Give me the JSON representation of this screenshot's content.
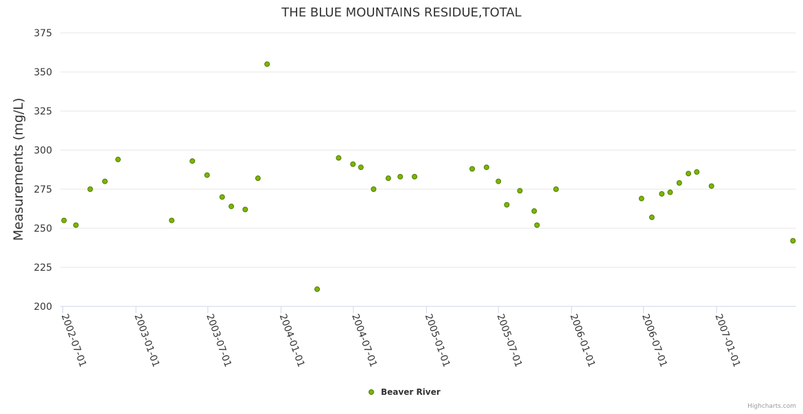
{
  "chart_data": {
    "type": "scatter",
    "title": "THE BLUE MOUNTAINS RESIDUE,TOTAL",
    "ylabel": "Measurements (mg/L)",
    "xlabel": "",
    "ylim": [
      200,
      375
    ],
    "yticks": [
      200,
      225,
      250,
      275,
      300,
      325,
      350,
      375
    ],
    "xlim": [
      "2002-06-25",
      "2007-07-20"
    ],
    "xticks": [
      "2002-07-01",
      "2003-01-01",
      "2003-07-01",
      "2004-01-01",
      "2004-07-01",
      "2005-01-01",
      "2005-07-01",
      "2006-01-01",
      "2006-07-01",
      "2007-01-01"
    ],
    "grid": true,
    "legend_position": "bottom-center",
    "series": [
      {
        "name": "Beaver River",
        "color": "#7cb500",
        "points": [
          {
            "x": "2002-07-04",
            "y": 255
          },
          {
            "x": "2002-08-03",
            "y": 252
          },
          {
            "x": "2002-09-08",
            "y": 275
          },
          {
            "x": "2002-10-15",
            "y": 280
          },
          {
            "x": "2002-11-17",
            "y": 294
          },
          {
            "x": "2003-04-01",
            "y": 255
          },
          {
            "x": "2003-05-23",
            "y": 293
          },
          {
            "x": "2003-06-29",
            "y": 284
          },
          {
            "x": "2003-08-06",
            "y": 270
          },
          {
            "x": "2003-08-29",
            "y": 264
          },
          {
            "x": "2003-10-03",
            "y": 262
          },
          {
            "x": "2003-11-04",
            "y": 282
          },
          {
            "x": "2003-11-27",
            "y": 355
          },
          {
            "x": "2004-04-01",
            "y": 211
          },
          {
            "x": "2004-05-25",
            "y": 295
          },
          {
            "x": "2004-06-30",
            "y": 291
          },
          {
            "x": "2004-07-20",
            "y": 289
          },
          {
            "x": "2004-08-21",
            "y": 275
          },
          {
            "x": "2004-09-27",
            "y": 282
          },
          {
            "x": "2004-10-27",
            "y": 283
          },
          {
            "x": "2004-12-02",
            "y": 283
          },
          {
            "x": "2005-04-26",
            "y": 288
          },
          {
            "x": "2005-06-01",
            "y": 289
          },
          {
            "x": "2005-07-01",
            "y": 280
          },
          {
            "x": "2005-07-22",
            "y": 265
          },
          {
            "x": "2005-08-24",
            "y": 274
          },
          {
            "x": "2005-09-29",
            "y": 261
          },
          {
            "x": "2005-10-06",
            "y": 252
          },
          {
            "x": "2005-11-23",
            "y": 275
          },
          {
            "x": "2006-06-26",
            "y": 269
          },
          {
            "x": "2006-07-22",
            "y": 257
          },
          {
            "x": "2006-08-16",
            "y": 272
          },
          {
            "x": "2006-09-06",
            "y": 273
          },
          {
            "x": "2006-09-29",
            "y": 279
          },
          {
            "x": "2006-10-22",
            "y": 285
          },
          {
            "x": "2006-11-12",
            "y": 286
          },
          {
            "x": "2006-12-19",
            "y": 277
          },
          {
            "x": "2007-07-12",
            "y": 242
          }
        ]
      }
    ]
  },
  "credits": "Highcharts.com",
  "colors": {
    "marker_fill": "#7cb500",
    "marker_stroke": "#4f7a00",
    "grid": "#e6e6e6",
    "axis": "#ccd6eb"
  }
}
